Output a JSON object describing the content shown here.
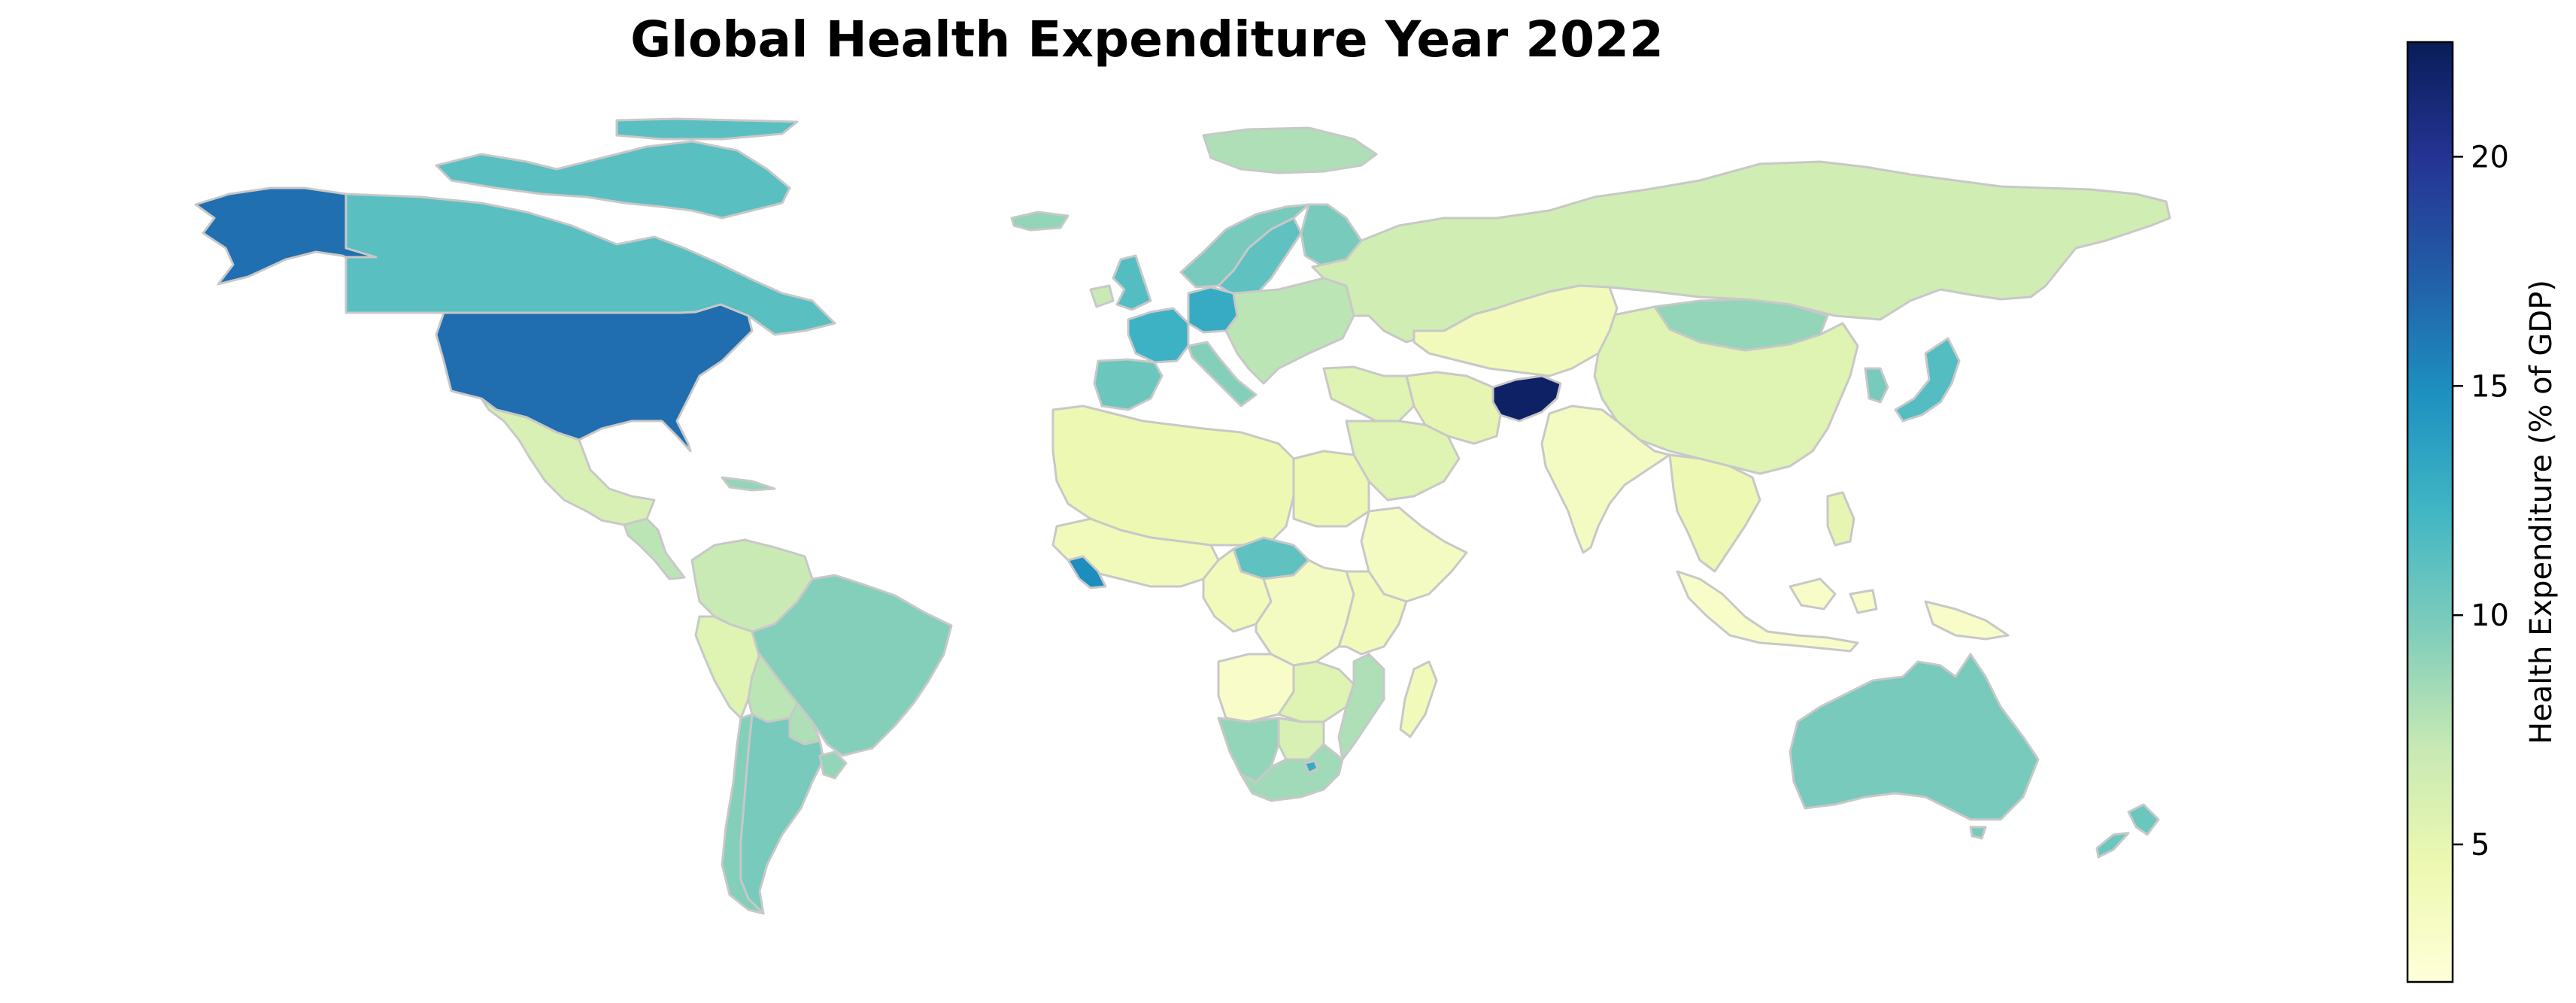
{
  "title": "Global Health Expenditure Year 2022",
  "colorbar": {
    "label": "Health Expenditure (% of GDP)",
    "min": 2,
    "max": 22.5,
    "ticks": [
      5,
      10,
      15,
      20
    ],
    "colormap": "YlGnBu",
    "stops": [
      "#ffffd9",
      "#edf8b1",
      "#c7e9b4",
      "#7fcdbb",
      "#41b6c4",
      "#1d91c0",
      "#225ea8",
      "#253494",
      "#081d58"
    ]
  },
  "chart_data": {
    "type": "choropleth",
    "metric": "Health Expenditure (% of GDP)",
    "year": 2022,
    "colorbar_range": [
      2,
      22.5
    ],
    "values": [
      {
        "region": "Alaska (USA)",
        "value": 16.5
      },
      {
        "region": "Canada",
        "value": 11.2
      },
      {
        "region": "Canadian Arctic Islands",
        "value": 11.2
      },
      {
        "region": "Greenland",
        "value": 8.0
      },
      {
        "region": "United States",
        "value": 16.6
      },
      {
        "region": "Mexico",
        "value": 6.0
      },
      {
        "region": "Central America",
        "value": 7.5
      },
      {
        "region": "Cuba",
        "value": 9.0
      },
      {
        "region": "Colombia / Venezuela / Ecuador",
        "value": 7.0
      },
      {
        "region": "Peru",
        "value": 5.5
      },
      {
        "region": "Brazil",
        "value": 9.5
      },
      {
        "region": "Bolivia",
        "value": 7.5
      },
      {
        "region": "Paraguay",
        "value": 8.0
      },
      {
        "region": "Chile",
        "value": 9.5
      },
      {
        "region": "Argentina",
        "value": 10.0
      },
      {
        "region": "Uruguay",
        "value": 9.0
      },
      {
        "region": "Iceland",
        "value": 9.0
      },
      {
        "region": "Norway",
        "value": 10.0
      },
      {
        "region": "Sweden",
        "value": 11.0
      },
      {
        "region": "Finland",
        "value": 10.0
      },
      {
        "region": "United Kingdom",
        "value": 11.5
      },
      {
        "region": "Ireland",
        "value": 7.0
      },
      {
        "region": "France",
        "value": 12.5
      },
      {
        "region": "Germany",
        "value": 13.0
      },
      {
        "region": "Spain / Portugal",
        "value": 10.5
      },
      {
        "region": "Italy",
        "value": 9.5
      },
      {
        "region": "Eastern Europe",
        "value": 7.5
      },
      {
        "region": "Russia",
        "value": 6.5
      },
      {
        "region": "Mongolia",
        "value": 9.0
      },
      {
        "region": "China",
        "value": 5.5
      },
      {
        "region": "Japan",
        "value": 11.5
      },
      {
        "region": "Korea",
        "value": 10.0
      },
      {
        "region": "Central Asia",
        "value": 4.0
      },
      {
        "region": "Afghanistan",
        "value": 22.0
      },
      {
        "region": "Iran",
        "value": 5.0
      },
      {
        "region": "Middle East",
        "value": 5.5
      },
      {
        "region": "Saudi Arabia",
        "value": 5.5
      },
      {
        "region": "India",
        "value": 3.5
      },
      {
        "region": "Southeast Asia",
        "value": 4.5
      },
      {
        "region": "Indonesia",
        "value": 3.0
      },
      {
        "region": "Philippines",
        "value": 5.0
      },
      {
        "region": "Papua New Guinea",
        "value": 3.0
      },
      {
        "region": "North Africa",
        "value": 4.5
      },
      {
        "region": "Egypt",
        "value": 4.5
      },
      {
        "region": "West Africa",
        "value": 4.0
      },
      {
        "region": "Sierra Leone / Liberia",
        "value": 15.0
      },
      {
        "region": "Central African Republic",
        "value": 11.0
      },
      {
        "region": "Horn of Africa",
        "value": 3.5
      },
      {
        "region": "Central Africa",
        "value": 4.0
      },
      {
        "region": "DR Congo",
        "value": 3.5
      },
      {
        "region": "East Africa",
        "value": 4.0
      },
      {
        "region": "Angola",
        "value": 3.0
      },
      {
        "region": "Zambia / Zimbabwe",
        "value": 5.5
      },
      {
        "region": "Mozambique / Malawi",
        "value": 8.0
      },
      {
        "region": "Namibia",
        "value": 9.0
      },
      {
        "region": "Botswana",
        "value": 6.0
      },
      {
        "region": "South Africa",
        "value": 8.5
      },
      {
        "region": "Lesotho",
        "value": 13.0
      },
      {
        "region": "Madagascar",
        "value": 4.0
      },
      {
        "region": "Australia",
        "value": 10.0
      },
      {
        "region": "New Zealand",
        "value": 10.5
      }
    ]
  }
}
